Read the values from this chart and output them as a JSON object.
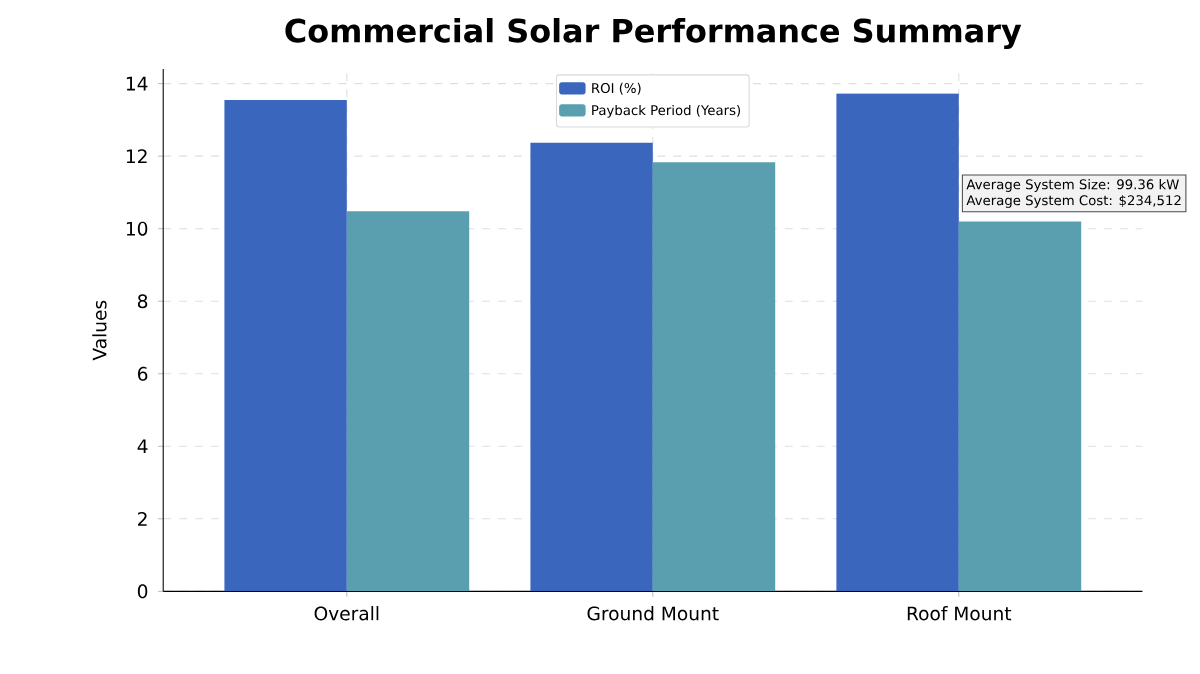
{
  "chart_data": {
    "type": "bar",
    "title": "Commercial Solar Performance Summary",
    "ylabel": "Values",
    "categories": [
      "Overall",
      "Ground Mount",
      "Roof Mount"
    ],
    "series": [
      {
        "name": "ROI (%)",
        "color": "#3a67bd",
        "values": [
          13.55,
          12.37,
          13.73
        ]
      },
      {
        "name": "Payback Period (Years)",
        "color": "#5a9faf",
        "values": [
          10.48,
          11.83,
          10.2
        ]
      }
    ],
    "ylim": [
      0,
      14.4
    ],
    "yticks": [
      0,
      2,
      4,
      6,
      8,
      10,
      12,
      14
    ],
    "grid": true,
    "legend": "top",
    "annotations": [
      "Average System Size: 99.36 kW",
      "Average System Cost: $234,512"
    ]
  }
}
